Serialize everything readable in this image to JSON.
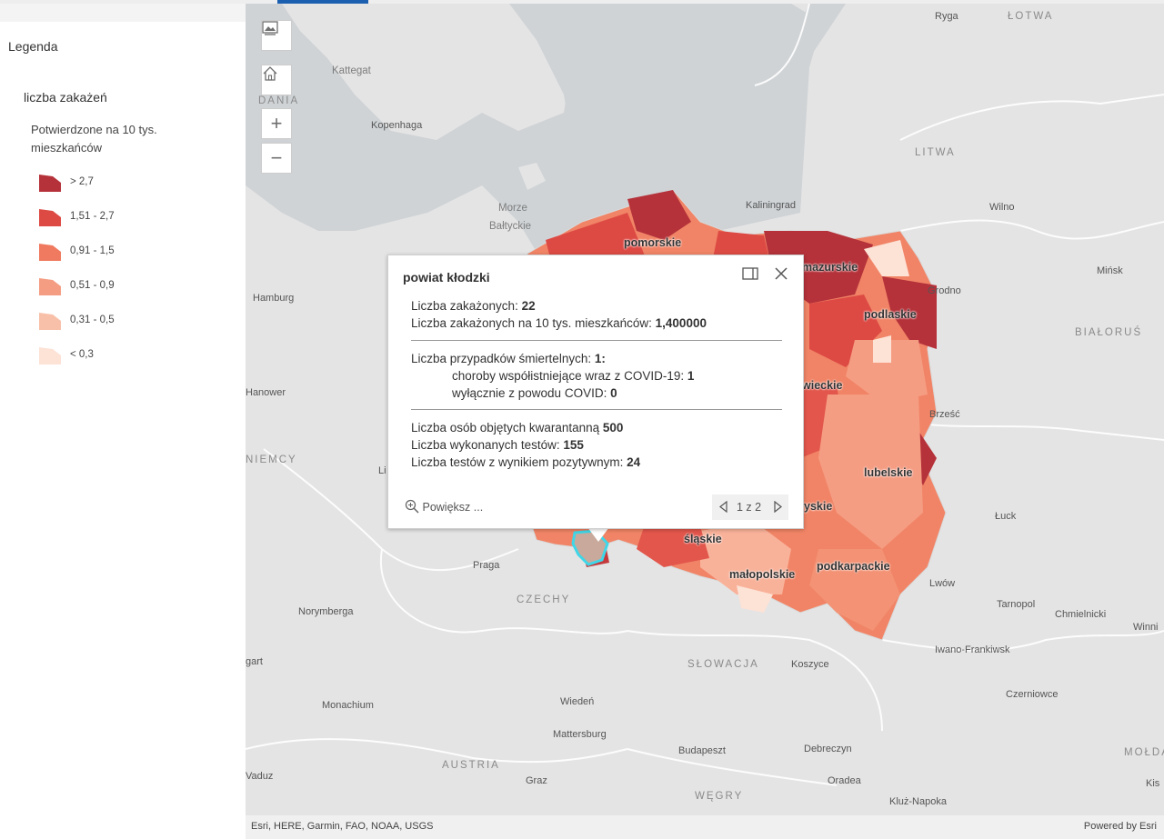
{
  "legend": {
    "title": "Legenda",
    "layer_title": "liczba zakażeń",
    "field_label": "Potwierdzone na 10 tys. mieszkańców",
    "classes": [
      {
        "label": "> 2,7",
        "color": "#b5323a"
      },
      {
        "label": "1,51 - 2,7",
        "color": "#dd4a44"
      },
      {
        "label": "0,91 - 1,5",
        "color": "#f07a5f"
      },
      {
        "label": "0,51 - 0,9",
        "color": "#f59d83"
      },
      {
        "label": "0,31 - 0,5",
        "color": "#f9c0a9"
      },
      {
        "label": "< 0,3",
        "color": "#fde2d6"
      }
    ]
  },
  "map": {
    "controls": {
      "basemap_icon": "image-icon",
      "home_icon": "home-icon",
      "zoom_in": "+",
      "zoom_out": "−"
    },
    "labels": {
      "ryga": "Ryga",
      "lotwa": "ŁOTWA",
      "kattegat": "Kattegat",
      "dania": "DANIA",
      "kopenhaga": "Kopenhaga",
      "litwa": "LITWA",
      "morze": "Morze",
      "baltyckie": "Bałtyckie",
      "kaliningrad": "Kaliningrad",
      "wilno": "Wilno",
      "hamburg": "Hamburg",
      "minsk": "Mińsk",
      "grodno": "Grodno",
      "bialorus": "BIAŁORUŚ",
      "hanower": "Hanower",
      "niemcy": "NIEMCY",
      "brzesc": "Brześć",
      "luck": "Łuck",
      "praga": "Praga",
      "czechy": "CZECHY",
      "norymberga": "Norymberga",
      "lwow": "Lwów",
      "tarnopol": "Tarnopol",
      "chmielnicki": "Chmielnicki",
      "winnica": "Winni",
      "iwano": "Iwano-Frankiwsk",
      "slowacja": "SŁOWACJA",
      "koszyce": "Koszyce",
      "stuttgart": "gart",
      "monachium": "Monachium",
      "wieden": "Wiedeń",
      "czerniowce": "Czerniowce",
      "mattersburg": "Mattersburg",
      "budapeszt": "Budapeszt",
      "debreczyn": "Debreczyn",
      "moldawia": "MOŁDA",
      "austria": "AUSTRIA",
      "graz": "Graz",
      "oradea": "Oradea",
      "wegry": "WĘGRY",
      "kluz": "Kluż-Napoka",
      "vaduz": "Vaduz",
      "kisz": "Kis",
      "li": "Li"
    },
    "regions": {
      "pomorskie": "pomorskie",
      "mazurskie": "mazurskie",
      "podlaskie": "podlaskie",
      "wieckie": "wieckie",
      "lubelskie": "lubelskie",
      "yskie": "yskie",
      "slaskie": "śląskie",
      "malopolskie": "małopolskie",
      "podkarpackie": "podkarpackie"
    },
    "attribution": "Esri, HERE, Garmin, FAO, NOAA, USGS",
    "powered_by": "Powered by Esri"
  },
  "popup": {
    "title": "powiat kłodzki",
    "dock_icon": "dock-icon",
    "close_icon": "close-icon",
    "lines": {
      "l1_label": "Liczba zakażonych:",
      "l1_value": "22",
      "l2_label": "Liczba zakażonych na 10 tys. mieszkańców:",
      "l2_value": "1,400000",
      "l3_label": "Liczba przypadków śmiertelnych:",
      "l3_value": "1:",
      "l4_label": "choroby współistniejące wraz z COVID-19:",
      "l4_value": "1",
      "l5_label": "wyłącznie z powodu COVID:",
      "l5_value": "0",
      "l6_label": "Liczba osób objętych kwarantanną",
      "l6_value": "500",
      "l7_label": "Liczba wykonanych testów:",
      "l7_value": "155",
      "l8_label": "Liczba testów z wynikiem pozytywnym:",
      "l8_value": "24"
    },
    "zoom_label": "Powiększ ...",
    "pager": "1 z 2"
  }
}
